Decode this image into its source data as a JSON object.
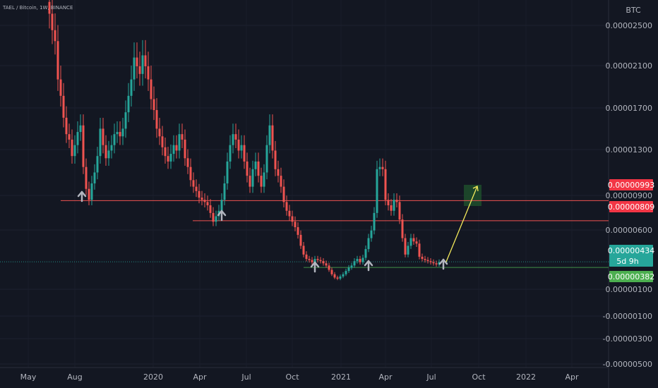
{
  "header": {
    "symbol_line": "TAEL / Bitcoin, 1W, BINANCE",
    "currency": "BTC"
  },
  "colors": {
    "background": "#131722",
    "up": "#26a69a",
    "down": "#ef5350",
    "text": "#b2b5be",
    "support_line": "#ef5350",
    "arrow": "#b2b5be",
    "projection": "#f5eb5b",
    "target_box": "#1e4d2b",
    "current_tag": "#26a69a",
    "low_tag": "#4caf50",
    "resistance_tag": "#f23645"
  },
  "price_tags": {
    "resistance_top": "0.00000993",
    "resistance_bottom": "0.00000809",
    "current": "0.00000434",
    "countdown": "5d 9h",
    "low": "0.00000382"
  },
  "chart_data": {
    "type": "candlestick",
    "y_axis_labels": [
      "0.00002500",
      "0.00002100",
      "0.00001700",
      "0.00001300",
      "0.00000900",
      "0.00000600",
      "0.00000100",
      "-0.00000100",
      "-0.00000300",
      "-0.00000500"
    ],
    "x_axis_labels": [
      "May",
      "Aug",
      "2020",
      "Apr",
      "Jul",
      "Oct",
      "2021",
      "Apr",
      "Jul",
      "Oct",
      "2022",
      "Apr"
    ],
    "ylim": [
      -5e-06,
      2.8e-05
    ],
    "horizontal_levels": [
      9.93e-06,
      8.09e-06,
      4.34e-06,
      3.82e-06
    ],
    "support_arrows": [
      "2019-08",
      "2020-06",
      "2020-11",
      "2021-03",
      "2021-07"
    ],
    "projection": {
      "from_price": 4.34e-06,
      "to_price": 9.93e-06
    },
    "closes": [
      2.7e-05,
      2.55e-05,
      2.45e-05,
      2.1e-05,
      1.95e-05,
      1.75e-05,
      1.6e-05,
      1.55e-05,
      1.4e-05,
      1.5e-05,
      1.62e-05,
      1.68e-05,
      1.3e-05,
      1.1e-05,
      1e-05,
      1.15e-05,
      1.25e-05,
      1.4e-05,
      1.65e-05,
      1.5e-05,
      1.38e-05,
      1.45e-05,
      1.5e-05,
      1.6e-05,
      1.62e-05,
      1.58e-05,
      1.65e-05,
      1.8e-05,
      1.95e-05,
      2.1e-05,
      2.3e-05,
      2.22e-05,
      2.15e-05,
      2.32e-05,
      2.22e-05,
      2.1e-05,
      1.92e-05,
      1.82e-05,
      1.65e-05,
      1.58e-05,
      1.48e-05,
      1.4e-05,
      1.35e-05,
      1.42e-05,
      1.5e-05,
      1.45e-05,
      1.6e-05,
      1.55e-05,
      1.38e-05,
      1.3e-05,
      1.18e-05,
      1.12e-05,
      1.08e-05,
      1.02e-05,
      1e-05,
      9.8e-06,
      9.5e-06,
      8.8e-06,
      8e-06,
      8.5e-06,
      9e-06,
      1e-05,
      1.15e-05,
      1.35e-05,
      1.5e-05,
      1.6e-05,
      1.55e-05,
      1.45e-05,
      1.5e-05,
      1.35e-05,
      1.22e-05,
      1.12e-05,
      1.28e-05,
      1.35e-05,
      1.22e-05,
      1.12e-05,
      1.25e-05,
      1.5e-05,
      1.68e-05,
      1.45e-05,
      1.28e-05,
      1.22e-05,
      1.12e-05,
      9.8e-06,
      9e-06,
      8.5e-06,
      8e-06,
      7.5e-06,
      6.8e-06,
      5.8e-06,
      5e-06,
      4.6e-06,
      4.5e-06,
      4.3e-06,
      4.6e-06,
      4.5e-06,
      4.4e-06,
      4.2e-06,
      4e-06,
      3.6e-06,
      3.2e-06,
      2.9e-06,
      2.8e-06,
      3e-06,
      3.2e-06,
      3.5e-06,
      3.8e-06,
      4e-06,
      4.4e-06,
      4.6e-06,
      4.3e-06,
      4.7e-06,
      5.5e-06,
      6.5e-06,
      7.2e-06,
      8.8e-06,
      1.28e-05,
      1.3e-05,
      1.28e-05,
      1e-05,
      9.5e-06,
      9e-06,
      1e-05,
      9.8e-06,
      8.2e-06,
      6.5e-06,
      5e-06,
      5.8e-06,
      6.5e-06,
      6.2e-06,
      6e-06,
      4.8e-06,
      4.6e-06,
      4.5e-06,
      4.4e-06,
      4.3e-06,
      4.2e-06,
      4.1e-06,
      4.3e-06
    ]
  }
}
